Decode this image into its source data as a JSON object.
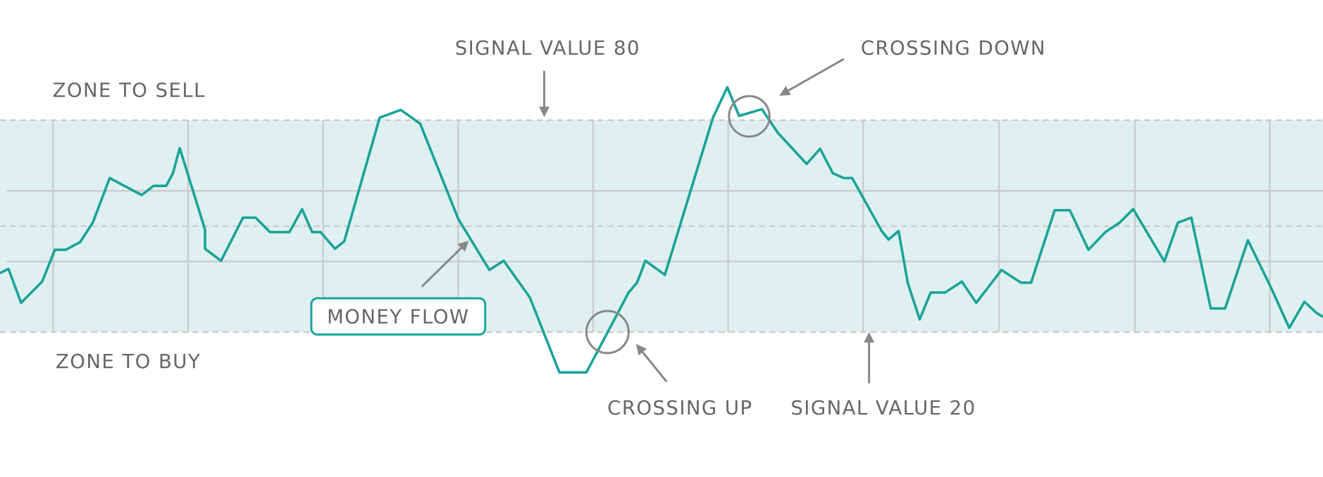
{
  "chart_data": {
    "type": "line",
    "annotations": {
      "signal_80": "SIGNAL VALUE 80",
      "crossing_down": "CROSSING DOWN",
      "zone_sell": "ZONE TO SELL",
      "zone_buy": "ZONE TO BUY",
      "crossing_up": "CROSSING UP",
      "signal_20": "SIGNAL VALUE 20"
    },
    "x": [
      0,
      10,
      25,
      50,
      65,
      78,
      95,
      110,
      130,
      168,
      182,
      197,
      205,
      213,
      243,
      243,
      262,
      288,
      303,
      320,
      343,
      358,
      370,
      380,
      397,
      408,
      450,
      475,
      498,
      543,
      580,
      597,
      628,
      663,
      695,
      745,
      755,
      765,
      788,
      845,
      862,
      876,
      903,
      922,
      956,
      972,
      987,
      1000,
      1010,
      1045,
      1053,
      1065,
      1076,
      1090,
      1103,
      1120,
      1140,
      1157,
      1187,
      1210,
      1222,
      1250,
      1268,
      1290,
      1310,
      1327,
      1343,
      1380,
      1396,
      1412,
      1435,
      1452,
      1479,
      1505,
      1528,
      1546,
      1560,
      1568
    ],
    "series": [
      {
        "name": "MONEY FLOW",
        "color": "#1aa39a",
        "values": [
          36.7,
          37.9,
          28.3,
          34.3,
          43.3,
          43.3,
          45.5,
          51,
          63.6,
          58.8,
          61.4,
          61.4,
          65,
          72.1,
          49,
          43.6,
          40.2,
          52.4,
          52.4,
          48.3,
          48.3,
          54.8,
          48.3,
          48.3,
          43.6,
          45.7,
          80.7,
          82.9,
          79,
          52.1,
          37.6,
          40.2,
          29.8,
          8.6,
          8.6,
          31.2,
          34,
          40.2,
          36.2,
          80.7,
          89.3,
          81.2,
          83.1,
          76.4,
          67.6,
          71.9,
          65,
          63.6,
          63.6,
          48.6,
          46.2,
          48.6,
          33.8,
          23.6,
          31.2,
          31.2,
          34.3,
          28.3,
          37.6,
          34,
          34,
          54.5,
          54.5,
          43.3,
          48.3,
          51,
          54.8,
          40,
          51,
          52.4,
          26.7,
          26.7,
          46,
          33.3,
          21.2,
          28.6,
          25.5,
          24.3
        ]
      }
    ],
    "xlim": [
      0,
      1568
    ],
    "ylim": [
      -21,
      114
    ],
    "band": [
      20,
      80
    ],
    "band_color": "#e0f0f0",
    "grid_y_solid": [
      40,
      60
    ],
    "grid_y_dashed": [
      20,
      50,
      80
    ],
    "grid_x": [
      63,
      223,
      383,
      543,
      703,
      863,
      1023,
      1184,
      1345,
      1505
    ],
    "sell_color": "#e05a6e"
  }
}
